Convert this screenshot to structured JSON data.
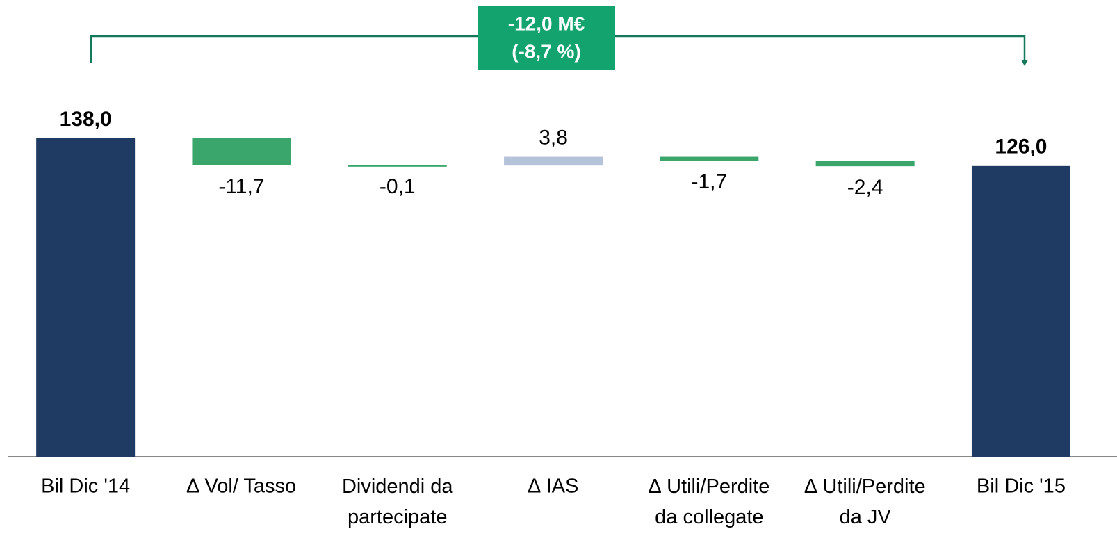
{
  "chart_data": {
    "type": "waterfall",
    "categories": [
      "Bil Dic '14",
      "∆ Vol/ Tasso",
      "Dividendi da\npartecipate",
      "∆ IAS",
      "∆ Utili/Perdite\nda collegate",
      "∆ Utili/Perdite\nda JV",
      "Bil Dic '15"
    ],
    "values": [
      138.0,
      -11.7,
      -0.1,
      3.8,
      -1.7,
      -2.4,
      126.0
    ],
    "value_labels": [
      "138,0",
      "-11,7",
      "-0,1",
      "3,8",
      "-1,7",
      "-2,4",
      "126,0"
    ],
    "is_total": [
      true,
      false,
      false,
      false,
      false,
      false,
      true
    ],
    "colors": {
      "total": "#1f3b63",
      "negative": "#3aa66c",
      "positive": "#b4c3d9"
    },
    "annotation": [
      "-12,0 M€",
      "(-8,7 %)"
    ]
  }
}
